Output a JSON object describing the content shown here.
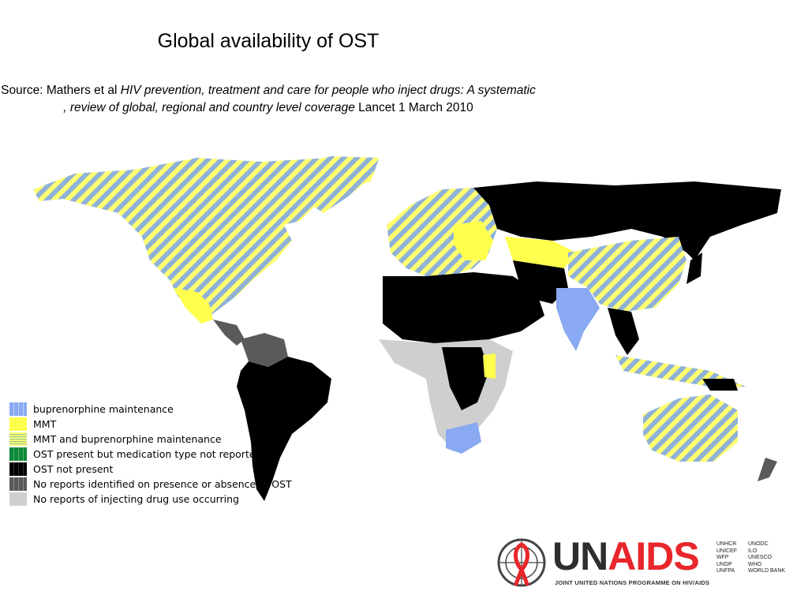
{
  "title": "Global availability of OST",
  "source": {
    "prefix": "Source: Mathers et al ",
    "italic": "HIV prevention, treatment and care for people who inject drugs: A systematic , review of global, regional and country level coverage",
    "suffix": " Lancet 1 March 2010"
  },
  "legend": [
    {
      "key": "bup",
      "label": "buprenorphine maintenance",
      "color": "#89a9f2"
    },
    {
      "key": "mmt",
      "label": "MMT",
      "color": "#ffff4d"
    },
    {
      "key": "both",
      "label": "MMT and  buprenorphine maintenance",
      "color": "#b9d089"
    },
    {
      "key": "ost",
      "label": "OST present but medication type not reported",
      "color": "#0d8a3c"
    },
    {
      "key": "none",
      "label": "OST not present",
      "color": "#000000"
    },
    {
      "key": "noreport",
      "label": "No reports identified on presence or absence of OST",
      "color": "#5a5a5a"
    },
    {
      "key": "nodrug",
      "label": "No reports of injecting drug use occurring",
      "color": "#cfcfcf"
    }
  ],
  "logo": {
    "un": "UN",
    "aids": "AIDS",
    "subtitle": "JOINT UNITED NATIONS PROGRAMME ON HIV/AIDS",
    "cosponsors": [
      "UNHCR",
      "UNODC",
      "UNICEF",
      "ILO",
      "WFP",
      "UNESCO",
      "UNDP",
      "WHO",
      "UNFPA",
      "WORLD BANK"
    ]
  }
}
